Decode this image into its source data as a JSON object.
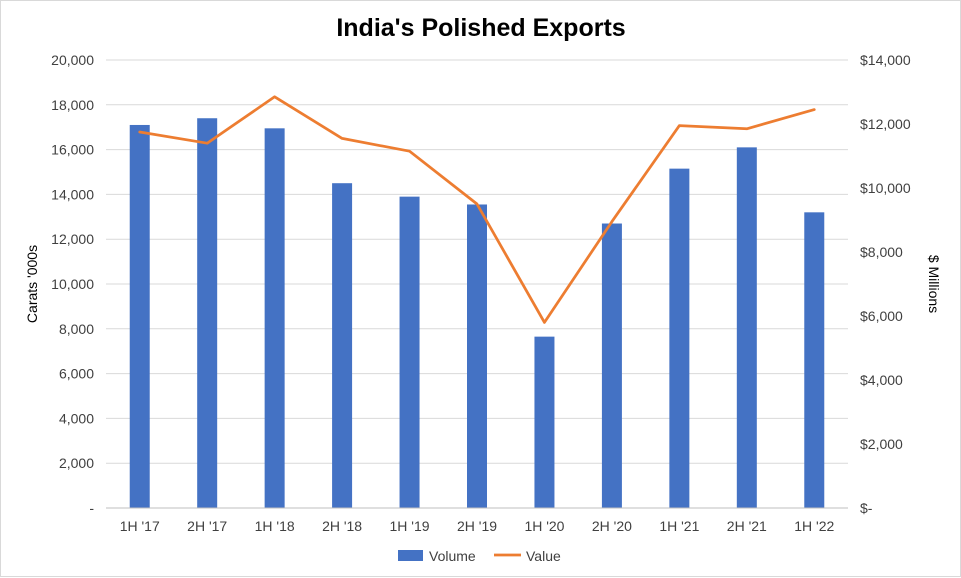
{
  "chart_data": {
    "type": "bar",
    "title": "India's Polished Exports",
    "categories": [
      "1H '17",
      "2H '17",
      "1H '18",
      "2H '18",
      "1H '19",
      "2H '19",
      "1H '20",
      "2H '20",
      "1H '21",
      "2H '21",
      "1H '22"
    ],
    "series": [
      {
        "name": "Volume",
        "type": "bar",
        "axis": "left",
        "color": "#4472C4",
        "values": [
          17100,
          17400,
          16950,
          14500,
          13900,
          13550,
          7650,
          12700,
          15150,
          16100,
          13200
        ]
      },
      {
        "name": "Value",
        "type": "line",
        "axis": "right",
        "color": "#ED7D31",
        "values": [
          11750,
          11400,
          12850,
          11550,
          11150,
          9500,
          5800,
          8950,
          11950,
          11850,
          12450
        ]
      }
    ],
    "y_left": {
      "label": "Carats '000s",
      "range": [
        0,
        20000
      ],
      "ticks": [
        0,
        2000,
        4000,
        6000,
        8000,
        10000,
        12000,
        14000,
        16000,
        18000,
        20000
      ],
      "tick_labels": [
        "-",
        "2,000",
        "4,000",
        "6,000",
        "8,000",
        "10,000",
        "12,000",
        "14,000",
        "16,000",
        "18,000",
        "20,000"
      ]
    },
    "y_right": {
      "label": "$ Millions",
      "range": [
        0,
        14000
      ],
      "ticks": [
        0,
        2000,
        4000,
        6000,
        8000,
        10000,
        12000,
        14000
      ],
      "tick_labels": [
        "$-",
        "$2,000",
        "$4,000",
        "$6,000",
        "$8,000",
        "$10,000",
        "$12,000",
        "$14,000"
      ]
    },
    "grid": true,
    "legend": "bottom",
    "colors": {
      "gridline": "#d9d9d9",
      "axis_line": "#bfbfbf",
      "background": "#ffffff"
    }
  }
}
